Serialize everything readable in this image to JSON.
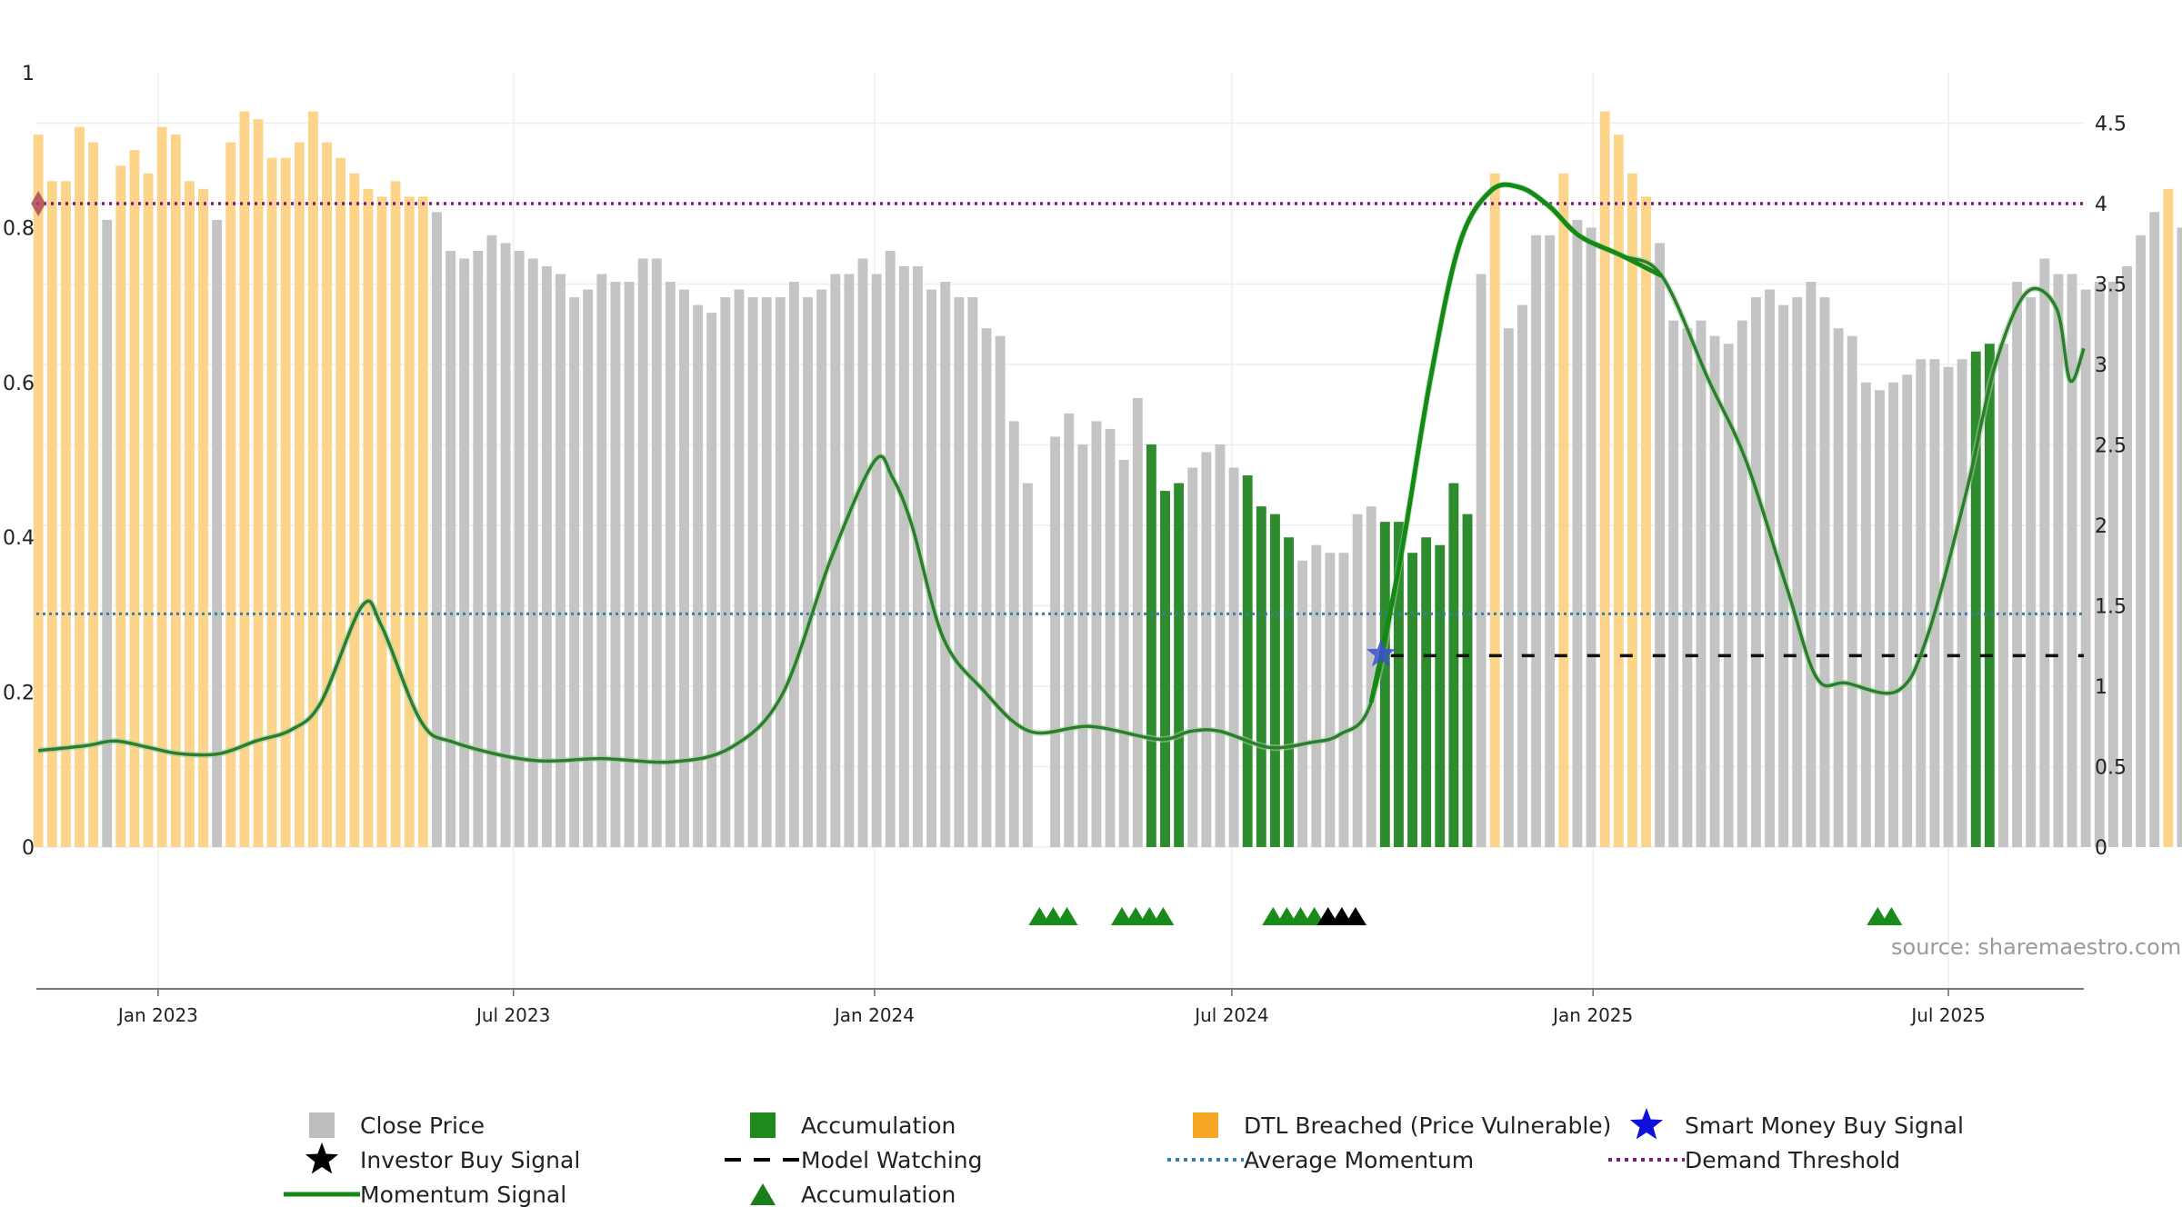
{
  "chart_data": {
    "type": "bar",
    "title": "",
    "source_label": "source: sharemaestro.com",
    "left_axis": {
      "ylim": [
        0,
        1
      ],
      "ticks": [
        "0",
        "0.2",
        "0.4",
        "0.6",
        "0.8",
        "1"
      ],
      "tick_values": [
        0,
        0.2,
        0.4,
        0.6,
        0.8,
        1
      ]
    },
    "right_axis": {
      "ylim": [
        0,
        4.5
      ],
      "ticks": [
        "0",
        "0.5",
        "1",
        "1.5",
        "2",
        "2.5",
        "3",
        "3.5",
        "4",
        "4.5"
      ],
      "tick_values": [
        0,
        0.5,
        1,
        1.5,
        2,
        2.5,
        3,
        3.5,
        4,
        4.5
      ]
    },
    "x_axis": {
      "start": "2022-10-31",
      "end": "2025-09-08",
      "ticks": [
        {
          "date": "2023-01-01",
          "label": "Jan 2023"
        },
        {
          "date": "2023-07-01",
          "label": "Jul 2023"
        },
        {
          "date": "2024-01-01",
          "label": "Jan 2024"
        },
        {
          "date": "2024-07-01",
          "label": "Jul 2024"
        },
        {
          "date": "2025-01-01",
          "label": "Jan 2025"
        },
        {
          "date": "2025-07-01",
          "label": "Jul 2025"
        }
      ]
    },
    "bar_start": "2022-11-01",
    "bar_interval_days": 7,
    "bar_values": [
      0.92,
      0.86,
      0.86,
      0.93,
      0.91,
      0.81,
      0.88,
      0.9,
      0.87,
      0.93,
      0.92,
      0.86,
      0.85,
      0.81,
      0.91,
      0.95,
      0.94,
      0.89,
      0.89,
      0.91,
      0.95,
      0.91,
      0.89,
      0.87,
      0.85,
      0.84,
      0.86,
      0.84,
      0.84,
      0.82,
      0.77,
      0.76,
      0.77,
      0.79,
      0.78,
      0.77,
      0.76,
      0.75,
      0.74,
      0.71,
      0.72,
      0.74,
      0.73,
      0.73,
      0.76,
      0.76,
      0.73,
      0.72,
      0.7,
      0.69,
      0.71,
      0.72,
      0.71,
      0.71,
      0.71,
      0.73,
      0.71,
      0.72,
      0.74,
      0.74,
      0.76,
      0.74,
      0.77,
      0.75,
      0.75,
      0.72,
      0.73,
      0.71,
      0.71,
      0.67,
      0.66,
      0.55,
      0.47,
      0,
      0.53,
      0.56,
      0.52,
      0.55,
      0.54,
      0.5,
      0.58,
      0.52,
      0.46,
      0.47,
      0.49,
      0.51,
      0.52,
      0.49,
      0.48,
      0.44,
      0.43,
      0.4,
      0.37,
      0.39,
      0.38,
      0.38,
      0.43,
      0.44,
      0.42,
      0.42,
      0.38,
      0.4,
      0.39,
      0.47,
      0.43,
      0.74,
      0.87,
      0.67,
      0.7,
      0.79,
      0.79,
      0.87,
      0.81,
      0.8,
      0.95,
      0.92,
      0.87,
      0.84,
      0.78,
      0.68,
      0.67,
      0.68,
      0.66,
      0.65,
      0.68,
      0.71,
      0.72,
      0.7,
      0.71,
      0.73,
      0.71,
      0.67,
      0.66,
      0.6,
      0.59,
      0.6,
      0.61,
      0.63,
      0.63,
      0.62,
      0.63,
      0.64,
      0.65,
      0.65,
      0.73,
      0.71,
      0.76,
      0.74,
      0.74,
      0.72,
      0.73,
      0.73,
      0.75,
      0.79,
      0.82,
      0.85,
      0.8
    ],
    "bar_categories": [
      "dtl",
      "dtl",
      "dtl",
      "dtl",
      "dtl",
      "close",
      "dtl",
      "dtl",
      "dtl",
      "dtl",
      "dtl",
      "dtl",
      "dtl",
      "close",
      "dtl",
      "dtl",
      "dtl",
      "dtl",
      "dtl",
      "dtl",
      "dtl",
      "dtl",
      "dtl",
      "dtl",
      "dtl",
      "dtl",
      "dtl",
      "dtl",
      "dtl",
      "close",
      "close",
      "close",
      "close",
      "close",
      "close",
      "close",
      "close",
      "close",
      "close",
      "close",
      "close",
      "close",
      "close",
      "close",
      "close",
      "close",
      "close",
      "close",
      "close",
      "close",
      "close",
      "close",
      "close",
      "close",
      "close",
      "close",
      "close",
      "close",
      "close",
      "close",
      "close",
      "close",
      "close",
      "close",
      "close",
      "close",
      "close",
      "close",
      "close",
      "close",
      "close",
      "close",
      "close",
      "close",
      "close",
      "close",
      "close",
      "close",
      "close",
      "close",
      "close",
      "acc",
      "acc",
      "acc",
      "close",
      "close",
      "close",
      "close",
      "acc",
      "acc",
      "acc",
      "acc",
      "close",
      "close",
      "close",
      "close",
      "close",
      "close",
      "acc",
      "acc",
      "acc",
      "acc",
      "acc",
      "acc",
      "acc",
      "close",
      "dtl",
      "close",
      "close",
      "close",
      "close",
      "dtl",
      "close",
      "close",
      "dtl",
      "dtl",
      "dtl",
      "dtl",
      "close",
      "close",
      "close",
      "close",
      "close",
      "close",
      "close",
      "close",
      "close",
      "close",
      "close",
      "close",
      "close",
      "close",
      "close",
      "close",
      "close",
      "close",
      "close",
      "close",
      "close",
      "close",
      "close",
      "acc",
      "acc",
      "close",
      "close",
      "close",
      "close",
      "close",
      "close",
      "close",
      "close",
      "close",
      "close",
      "close",
      "close",
      "dtl",
      "close"
    ],
    "momentum_signal": [
      {
        "date": "2022-11-01",
        "value": 0.6
      },
      {
        "date": "2022-11-25",
        "value": 0.63
      },
      {
        "date": "2022-12-10",
        "value": 0.66
      },
      {
        "date": "2022-12-27",
        "value": 0.62
      },
      {
        "date": "2023-01-12",
        "value": 0.58
      },
      {
        "date": "2023-02-01",
        "value": 0.58
      },
      {
        "date": "2023-02-20",
        "value": 0.66
      },
      {
        "date": "2023-03-10",
        "value": 0.73
      },
      {
        "date": "2023-03-25",
        "value": 0.9
      },
      {
        "date": "2023-04-15",
        "value": 1.5
      },
      {
        "date": "2023-04-25",
        "value": 1.37
      },
      {
        "date": "2023-05-15",
        "value": 0.78
      },
      {
        "date": "2023-06-01",
        "value": 0.65
      },
      {
        "date": "2023-07-10",
        "value": 0.54
      },
      {
        "date": "2023-08-15",
        "value": 0.55
      },
      {
        "date": "2023-09-20",
        "value": 0.53
      },
      {
        "date": "2023-10-20",
        "value": 0.62
      },
      {
        "date": "2023-11-15",
        "value": 0.95
      },
      {
        "date": "2023-12-10",
        "value": 1.8
      },
      {
        "date": "2024-01-01",
        "value": 2.4
      },
      {
        "date": "2024-01-10",
        "value": 2.3
      },
      {
        "date": "2024-01-20",
        "value": 2.0
      },
      {
        "date": "2024-02-05",
        "value": 1.3
      },
      {
        "date": "2024-02-25",
        "value": 0.98
      },
      {
        "date": "2024-03-20",
        "value": 0.72
      },
      {
        "date": "2024-04-20",
        "value": 0.75
      },
      {
        "date": "2024-05-25",
        "value": 0.67
      },
      {
        "date": "2024-06-10",
        "value": 0.72
      },
      {
        "date": "2024-06-25",
        "value": 0.72
      },
      {
        "date": "2024-07-20",
        "value": 0.62
      },
      {
        "date": "2024-08-10",
        "value": 0.65
      },
      {
        "date": "2024-08-25",
        "value": 0.7
      },
      {
        "date": "2024-09-10",
        "value": 0.9
      },
      {
        "date": "2024-09-25",
        "value": 1.8
      },
      {
        "date": "2024-10-10",
        "value": 2.9
      },
      {
        "date": "2024-10-25",
        "value": 3.75
      },
      {
        "date": "2024-11-10",
        "value": 4.08
      },
      {
        "date": "2024-11-25",
        "value": 4.1
      },
      {
        "date": "2024-12-10",
        "value": 3.98
      },
      {
        "date": "2024-12-25",
        "value": 3.8
      },
      {
        "date": "2025-01-15",
        "value": 3.68
      },
      {
        "date": "2025-02-05",
        "value": 3.55
      },
      {
        "date": "2025-03-01",
        "value": 2.9
      },
      {
        "date": "2025-03-20",
        "value": 2.4
      },
      {
        "date": "2025-04-10",
        "value": 1.6
      },
      {
        "date": "2025-04-25",
        "value": 1.05
      },
      {
        "date": "2025-05-10",
        "value": 1.02
      },
      {
        "date": "2025-06-05",
        "value": 0.97
      },
      {
        "date": "2025-06-20",
        "value": 1.3
      },
      {
        "date": "2025-07-10",
        "value": 2.2
      },
      {
        "date": "2025-07-25",
        "value": 3.0
      },
      {
        "date": "2025-08-10",
        "value": 3.45
      },
      {
        "date": "2025-08-25",
        "value": 3.35
      },
      {
        "date": "2025-09-01",
        "value": 2.9
      },
      {
        "date": "2025-09-08",
        "value": 3.1
      }
    ],
    "momentum_bold_segments": [
      {
        "from": "2024-09-05",
        "to": "2025-02-28"
      }
    ],
    "average_momentum": 1.45,
    "demand_threshold": 4.0,
    "model_watching": {
      "from": "2024-09-20",
      "to": "2025-09-08",
      "value": 1.19
    },
    "smart_money_buy_signal": {
      "date": "2024-09-15",
      "value": 1.2
    },
    "dtl_marker": {
      "date": "2022-11-01",
      "value": 4.0
    },
    "accumulation_markers": [
      "2024-03-25",
      "2024-04-01",
      "2024-04-08",
      "2024-05-06",
      "2024-05-13",
      "2024-05-20",
      "2024-05-27",
      "2024-07-22",
      "2024-07-29",
      "2024-08-05",
      "2024-08-12",
      "2025-05-26",
      "2025-06-02"
    ],
    "investor_buy_markers": [
      "2024-08-19",
      "2024-08-26",
      "2024-09-02"
    ],
    "legend": [
      {
        "label": "Close Price",
        "kind": "square",
        "color": "#bdbdbd"
      },
      {
        "label": "Accumulation",
        "kind": "square",
        "color": "#1e8a1e"
      },
      {
        "label": "DTL Breached (Price Vulnerable)",
        "kind": "square",
        "color": "#f5a623"
      },
      {
        "label": "Smart Money Buy Signal",
        "kind": "star",
        "color": "#1010dd"
      },
      {
        "label": "Investor Buy Signal",
        "kind": "star",
        "color": "#000000"
      },
      {
        "label": "Model Watching",
        "kind": "dash",
        "color": "#000000"
      },
      {
        "label": "Average Momentum",
        "kind": "dot",
        "color": "#3a7ca8"
      },
      {
        "label": "Demand Threshold",
        "kind": "dot",
        "color": "#7a1a7a"
      },
      {
        "label": "Momentum Signal",
        "kind": "line",
        "color": "#1a7f1a"
      },
      {
        "label": "Accumulation",
        "kind": "triangle",
        "color": "#1a7f1a"
      }
    ],
    "colors": {
      "close": "#c4c4c4",
      "acc": "#2e8b2e",
      "dtl": "#fcd58a",
      "momentum": "#2e7d2e",
      "momentum_bold": "#148a14",
      "average": "#3a7ca8",
      "demand": "#7a1a7a",
      "grid": "#eeeeee",
      "marker_red": "#b0475a"
    }
  }
}
